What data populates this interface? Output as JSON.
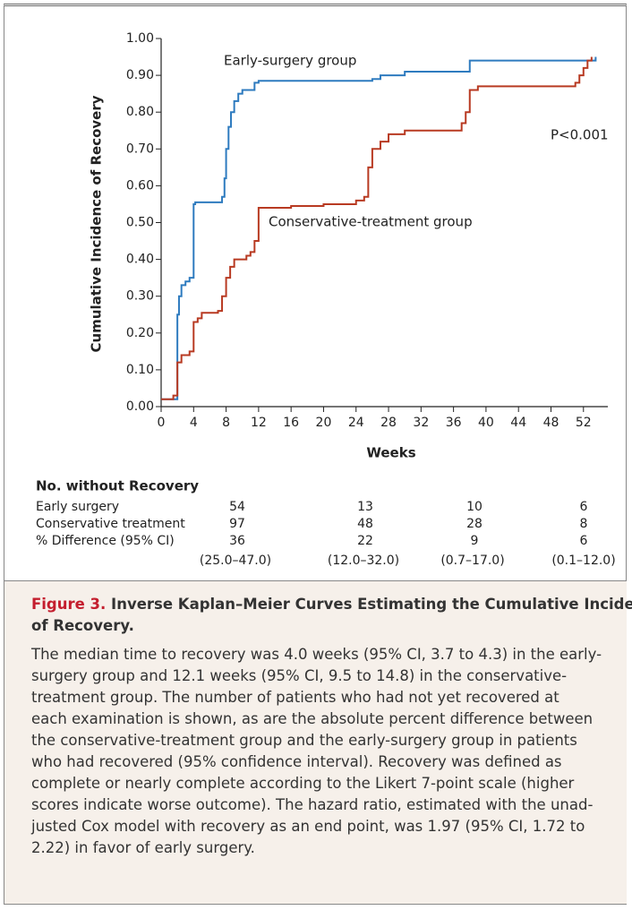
{
  "chart_data": {
    "type": "step",
    "ylabel": "Cumulative Incidence of Recovery",
    "xlabel": "Weeks",
    "xlim": [
      0,
      55
    ],
    "xticks": [
      0,
      4,
      8,
      12,
      16,
      20,
      24,
      28,
      32,
      36,
      40,
      44,
      48,
      52
    ],
    "ylim": [
      0,
      1
    ],
    "yticks": [
      {
        "value": 0,
        "label": "0.00"
      },
      {
        "value": 0.1,
        "label": "0.10"
      },
      {
        "value": 0.2,
        "label": "0.20"
      },
      {
        "value": 0.3,
        "label": "0.30"
      },
      {
        "value": 0.4,
        "label": "0.40"
      },
      {
        "value": 0.5,
        "label": "0.50"
      },
      {
        "value": 0.6,
        "label": "0.60"
      },
      {
        "value": 0.7,
        "label": "0.70"
      },
      {
        "value": 0.8,
        "label": "0.80"
      },
      {
        "value": 0.9,
        "label": "0.90"
      },
      {
        "value": 1,
        "label": "1.00"
      }
    ],
    "series": [
      {
        "name": "Early-surgery group",
        "color": "#2e7bbf",
        "x": [
          0,
          2,
          2.2,
          2.5,
          3,
          3.5,
          4,
          4.2,
          7.5,
          7.8,
          8,
          8.3,
          8.6,
          9,
          9.5,
          10,
          11.5,
          12,
          26,
          27,
          30,
          38,
          53.5
        ],
        "values": [
          0.02,
          0.25,
          0.3,
          0.33,
          0.34,
          0.35,
          0.55,
          0.555,
          0.57,
          0.62,
          0.7,
          0.76,
          0.8,
          0.83,
          0.85,
          0.86,
          0.88,
          0.885,
          0.89,
          0.9,
          0.91,
          0.94,
          0.95
        ]
      },
      {
        "name": "Conservative-treatment group",
        "color": "#b83a22",
        "x": [
          0,
          1.5,
          2,
          2.5,
          3.5,
          4,
          4.5,
          5,
          7,
          7.5,
          8,
          8.5,
          9,
          10.5,
          11,
          11.5,
          12,
          16,
          20,
          24,
          25,
          25.5,
          26,
          27,
          28,
          30,
          37,
          37.5,
          38,
          39,
          51,
          51.5,
          52,
          52.5,
          53
        ],
        "values": [
          0.02,
          0.03,
          0.12,
          0.14,
          0.15,
          0.23,
          0.24,
          0.255,
          0.26,
          0.3,
          0.35,
          0.38,
          0.4,
          0.41,
          0.42,
          0.45,
          0.54,
          0.545,
          0.55,
          0.56,
          0.57,
          0.65,
          0.7,
          0.72,
          0.74,
          0.75,
          0.77,
          0.8,
          0.86,
          0.87,
          0.88,
          0.9,
          0.92,
          0.94,
          0.95
        ]
      }
    ],
    "annotations": [
      "P<0.001"
    ]
  },
  "risk_table": {
    "title": "No. without Recovery",
    "rows": [
      {
        "label": "Early surgery",
        "values": [
          "54",
          "13",
          "10",
          "6"
        ]
      },
      {
        "label": "Conservative treatment",
        "values": [
          "97",
          "48",
          "28",
          "8"
        ]
      },
      {
        "label": "% Difference (95% CI)",
        "values": [
          "36",
          "22",
          "9",
          "6"
        ],
        "ci": [
          "(25.0–47.0)",
          "(12.0–32.0)",
          "(0.7–17.0)",
          "(0.1–12.0)"
        ]
      }
    ]
  },
  "caption": {
    "label": "Figure 3.",
    "title_lines": [
      " Inverse Kaplan–Meier Curves Estimating the Cumulative Incidence",
      "of Recovery."
    ],
    "body_lines": [
      "The median time to recovery was 4.0 weeks (95% CI, 3.7 to 4.3) in the early-",
      "surgery group and 12.1 weeks (95% CI, 9.5 to 14.8) in the conservative-",
      "treatment group. The number of patients who had not yet recovered at",
      "each examination is shown, as are the absolute percent difference between",
      "the conservative-treatment group and the early-surgery group in patients",
      "who had recovered (95% confidence interval). Recovery was defined as",
      "complete or nearly complete according to the Likert 7-point scale (higher",
      "scores indicate worse outcome). The hazard ratio, estimated with the unad-",
      "justed Cox model with recovery as an end point, was 1.97 (95% CI, 1.72 to",
      "2.22) in favor of early surgery."
    ]
  }
}
